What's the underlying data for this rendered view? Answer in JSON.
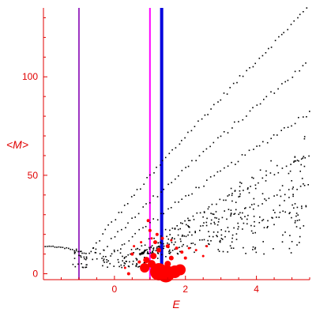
{
  "chart_data": {
    "type": "scatter",
    "xlabel": "E",
    "ylabel": "<M>",
    "xlim": [
      -2.0,
      5.5
    ],
    "ylim": [
      -3,
      135
    ],
    "x_ticks": [
      0,
      2,
      4
    ],
    "x_tick_labels": [
      "0",
      "2",
      "4"
    ],
    "y_ticks": [
      0,
      50,
      100
    ],
    "y_tick_labels": [
      "0",
      "50",
      "100"
    ],
    "grid": false,
    "colors": {
      "axis": "#e00000",
      "points": "#000000",
      "highlight": "#ff0000",
      "line_purple": "#9b30c0",
      "line_magenta": "#ff00ff",
      "line_blue": "#0000dd"
    },
    "vertical_lines": [
      {
        "x": -1.0,
        "color": "#9b30c0"
      },
      {
        "x": 1.0,
        "color": "#ff00ff"
      },
      {
        "x": 1.33,
        "color": "#0000dd"
      }
    ],
    "series": [
      {
        "color": "#000000",
        "bands": [
          {
            "x0": -0.7,
            "y0": 10,
            "x1": 5.5,
            "y1": 136,
            "dx": 0.09
          },
          {
            "x0": -0.5,
            "y0": 8,
            "x1": 5.5,
            "y1": 108,
            "dx": 0.1
          },
          {
            "x0": -0.3,
            "y0": 6,
            "x1": 5.5,
            "y1": 82,
            "dx": 0.1
          },
          {
            "x0": 0.0,
            "y0": 5,
            "x1": 5.5,
            "y1": 60,
            "dx": 0.11
          },
          {
            "x0": 0.3,
            "y0": 4,
            "x1": 5.5,
            "y1": 46,
            "dx": 0.11
          },
          {
            "x0": 0.6,
            "y0": 3,
            "x1": 5.5,
            "y1": 35,
            "dx": 0.12
          }
        ],
        "cluster": {
          "x0": 0.7,
          "x1": 5.5,
          "y0": 6,
          "y1": 70,
          "count": 260
        },
        "tail": {
          "x0": -1.95,
          "x1": -0.8,
          "y": 14,
          "count": 22
        }
      },
      {
        "color": "#ff0000",
        "points": [
          [
            0.85,
            3,
            6
          ],
          [
            1.05,
            5,
            5
          ],
          [
            1.25,
            1,
            11
          ],
          [
            1.45,
            0,
            11
          ],
          [
            1.7,
            1,
            8
          ],
          [
            1.85,
            2,
            7
          ],
          [
            0.9,
            7,
            4
          ],
          [
            1.1,
            9,
            4
          ],
          [
            1.5,
            5,
            4
          ],
          [
            1.6,
            8,
            3
          ],
          [
            1.25,
            12,
            3
          ],
          [
            1.15,
            16,
            2.5
          ],
          [
            0.7,
            6,
            2
          ],
          [
            0.5,
            10,
            2
          ],
          [
            0.4,
            0,
            2
          ],
          [
            1.0,
            22,
            2
          ],
          [
            0.95,
            27,
            2
          ],
          [
            1.2,
            20,
            2
          ],
          [
            1.5,
            14,
            2.5
          ],
          [
            1.75,
            13,
            2
          ],
          [
            1.9,
            11,
            2
          ],
          [
            2.0,
            8,
            2
          ],
          [
            2.1,
            13,
            1.5
          ],
          [
            2.3,
            12,
            1.5
          ],
          [
            2.5,
            9,
            1.5
          ],
          [
            2.6,
            14,
            1.5
          ],
          [
            0.3,
            3,
            1.5
          ],
          [
            1.05,
            18,
            1.5
          ],
          [
            1.35,
            18,
            2
          ],
          [
            0.75,
            16,
            1.5
          ],
          [
            0.55,
            14,
            1.5
          ],
          [
            1.6,
            17,
            1.5
          ]
        ]
      }
    ]
  }
}
